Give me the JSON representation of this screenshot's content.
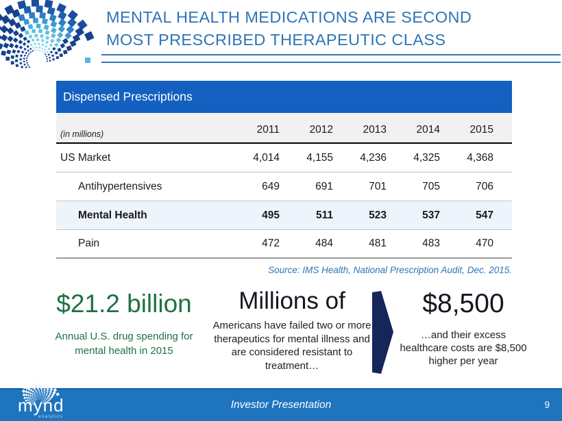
{
  "header": {
    "title_line1": "MENTAL HEALTH MEDICATIONS ARE SECOND",
    "title_line2": "MOST PRESCRIBED THERAPEUTIC CLASS"
  },
  "table": {
    "header": "Dispensed Prescriptions",
    "unit_label": "(in millions)",
    "years": [
      "2011",
      "2012",
      "2013",
      "2014",
      "2015"
    ],
    "rows": [
      {
        "label": "US Market",
        "values": [
          "4,014",
          "4,155",
          "4,236",
          "4,325",
          "4,368"
        ]
      },
      {
        "label": "Antihypertensives",
        "values": [
          "649",
          "691",
          "701",
          "705",
          "706"
        ]
      },
      {
        "label": "Mental Health",
        "values": [
          "495",
          "511",
          "523",
          "537",
          "547"
        ]
      },
      {
        "label": "Pain",
        "values": [
          "472",
          "484",
          "481",
          "483",
          "470"
        ]
      }
    ],
    "source": "Source: IMS Health, National Prescription Audit, Dec. 2015."
  },
  "stats": {
    "left": {
      "headline": "$21.2 billion",
      "caption": "Annual U.S. drug spending for mental health in 2015"
    },
    "middle": {
      "headline": "Millions of",
      "caption": "Americans have failed two or more therapeutics for mental illness and are considered resistant to treatment…"
    },
    "right": {
      "headline": "$8,500",
      "caption": "…and their excess healthcare costs are $8,500 higher per year"
    }
  },
  "footer": {
    "brand": "mynd",
    "brand_sub": "analytics",
    "center_text": "Investor Presentation",
    "page_number": "9"
  },
  "colors": {
    "title_blue": "#2E74B5",
    "table_header_blue": "#1460C0",
    "highlight_row_bg": "#EEF4FB",
    "green": "#1E7145",
    "arrow_navy": "#15265B",
    "footer_blue": "#1F74BE",
    "logo_outer_navy": "#16418F",
    "logo_cyan": "#56B8E0"
  }
}
